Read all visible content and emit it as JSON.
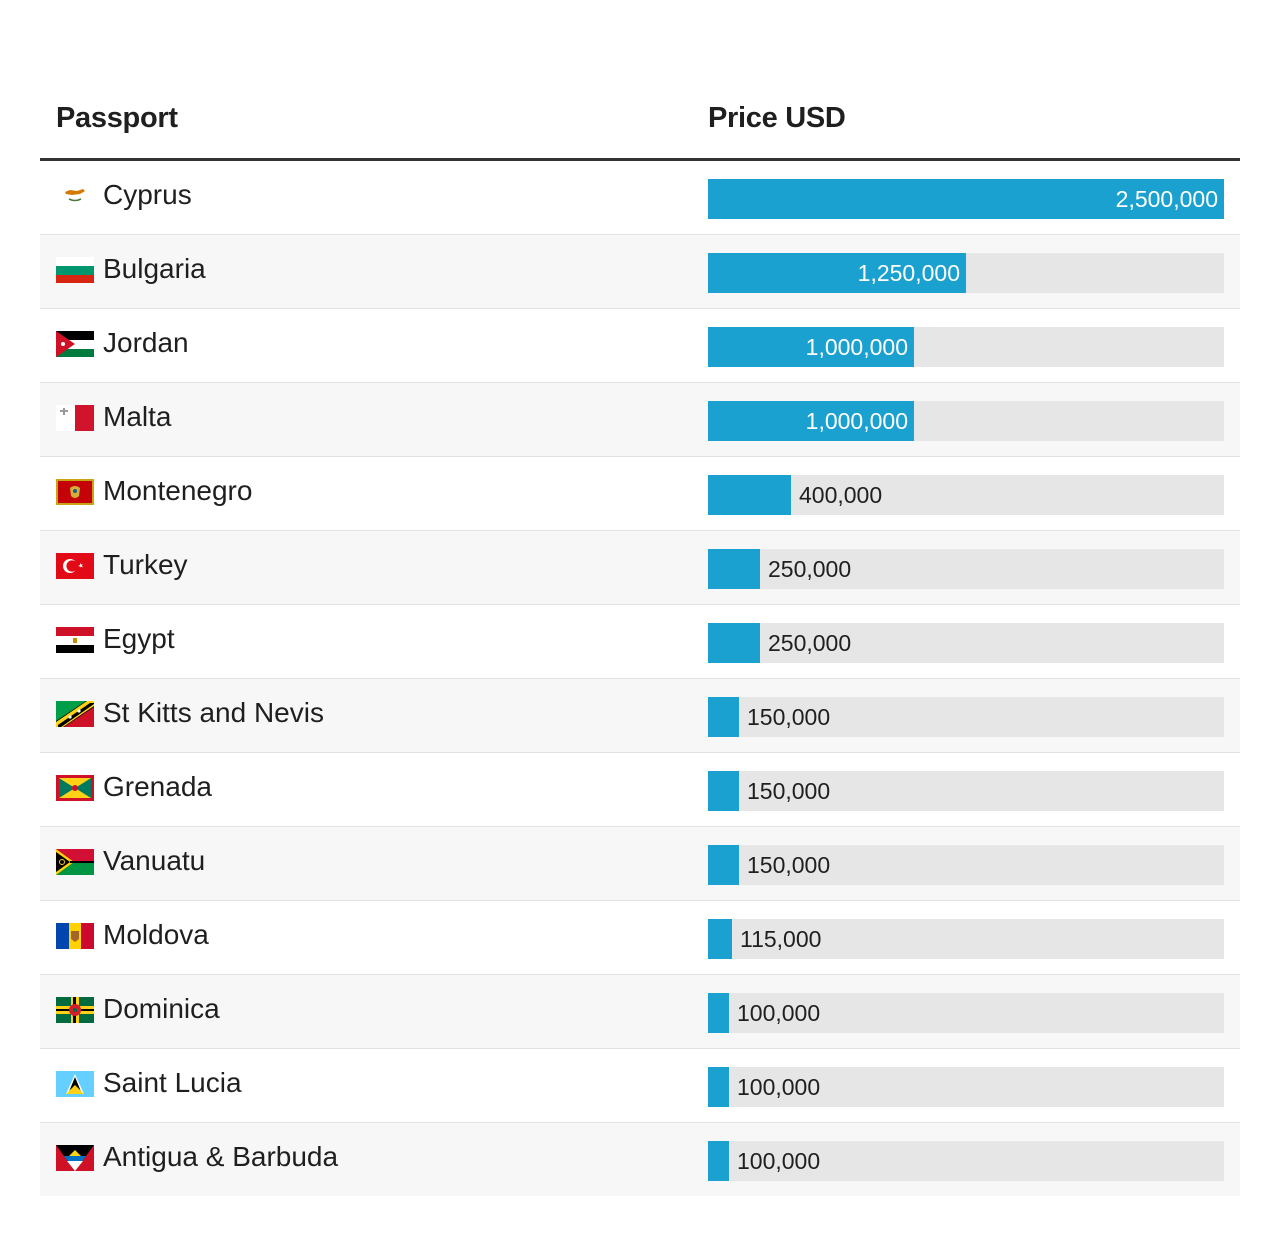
{
  "table": {
    "header_passport": "Passport",
    "header_price": "Price USD"
  },
  "chart_data": {
    "type": "bar",
    "orientation": "horizontal",
    "xlabel": "Price USD",
    "ylabel": "Passport",
    "xlim": [
      0,
      2500000
    ],
    "bar_color": "#1ba1cf",
    "track_color": "#e6e6e6",
    "categories": [
      "Cyprus",
      "Bulgaria",
      "Jordan",
      "Malta",
      "Montenegro",
      "Turkey",
      "Egypt",
      "St Kitts and Nevis",
      "Grenada",
      "Vanuatu",
      "Moldova",
      "Dominica",
      "Saint Lucia",
      "Antigua & Barbuda"
    ],
    "values": [
      2500000,
      1250000,
      1000000,
      1000000,
      400000,
      250000,
      250000,
      150000,
      150000,
      150000,
      115000,
      100000,
      100000,
      100000
    ],
    "value_labels": [
      "2,500,000",
      "1,250,000",
      "1,000,000",
      "1,000,000",
      "400,000",
      "250,000",
      "250,000",
      "150,000",
      "150,000",
      "150,000",
      "115,000",
      "100,000",
      "100,000",
      "100,000"
    ],
    "flags": [
      "cyprus-flag-icon",
      "bulgaria-flag-icon",
      "jordan-flag-icon",
      "malta-flag-icon",
      "montenegro-flag-icon",
      "turkey-flag-icon",
      "egypt-flag-icon",
      "st-kitts-and-nevis-flag-icon",
      "grenada-flag-icon",
      "vanuatu-flag-icon",
      "moldova-flag-icon",
      "dominica-flag-icon",
      "saint-lucia-flag-icon",
      "antigua-and-barbuda-flag-icon"
    ]
  }
}
